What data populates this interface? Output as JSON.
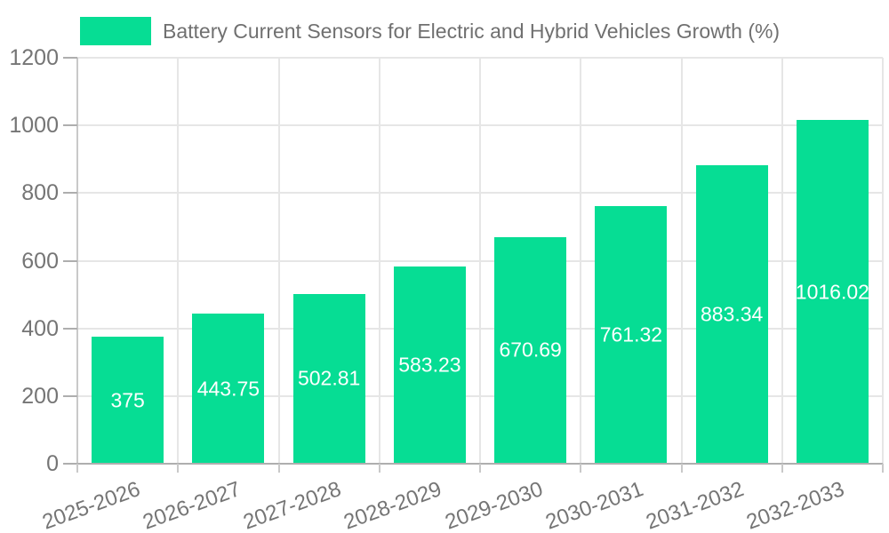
{
  "legend": {
    "label": "Battery Current Sensors for Electric and Hybrid Vehicles Growth (%)"
  },
  "colors": {
    "bar": "#06DD94",
    "grid": "#e6e6e6",
    "axis": "#aeaeae",
    "minor_line": "#c9c9c9",
    "tick_label": "#757575",
    "bar_label": "#ffffff",
    "background": "#ffffff"
  },
  "chart_data": {
    "type": "bar",
    "title": "Battery Current Sensors for Electric and Hybrid Vehicles Growth (%)",
    "categories": [
      "2025-2026",
      "2026-2027",
      "2027-2028",
      "2028-2029",
      "2029-2030",
      "2030-2031",
      "2031-2032",
      "2032-2033"
    ],
    "values": [
      375,
      443.75,
      502.81,
      583.23,
      670.69,
      761.32,
      883.34,
      1016.02
    ],
    "value_labels": [
      "375",
      "443.75",
      "502.81",
      "583.23",
      "670.69",
      "761.32",
      "883.34",
      "1016.02"
    ],
    "xlabel": "",
    "ylabel": "",
    "ylim": [
      0,
      1200
    ],
    "yticks": [
      0,
      200,
      400,
      600,
      800,
      1000,
      1200
    ],
    "grid": true,
    "legend_position": "top-left",
    "x_tick_rotation_deg": -20,
    "value_labels_position": "center-of-bar"
  }
}
